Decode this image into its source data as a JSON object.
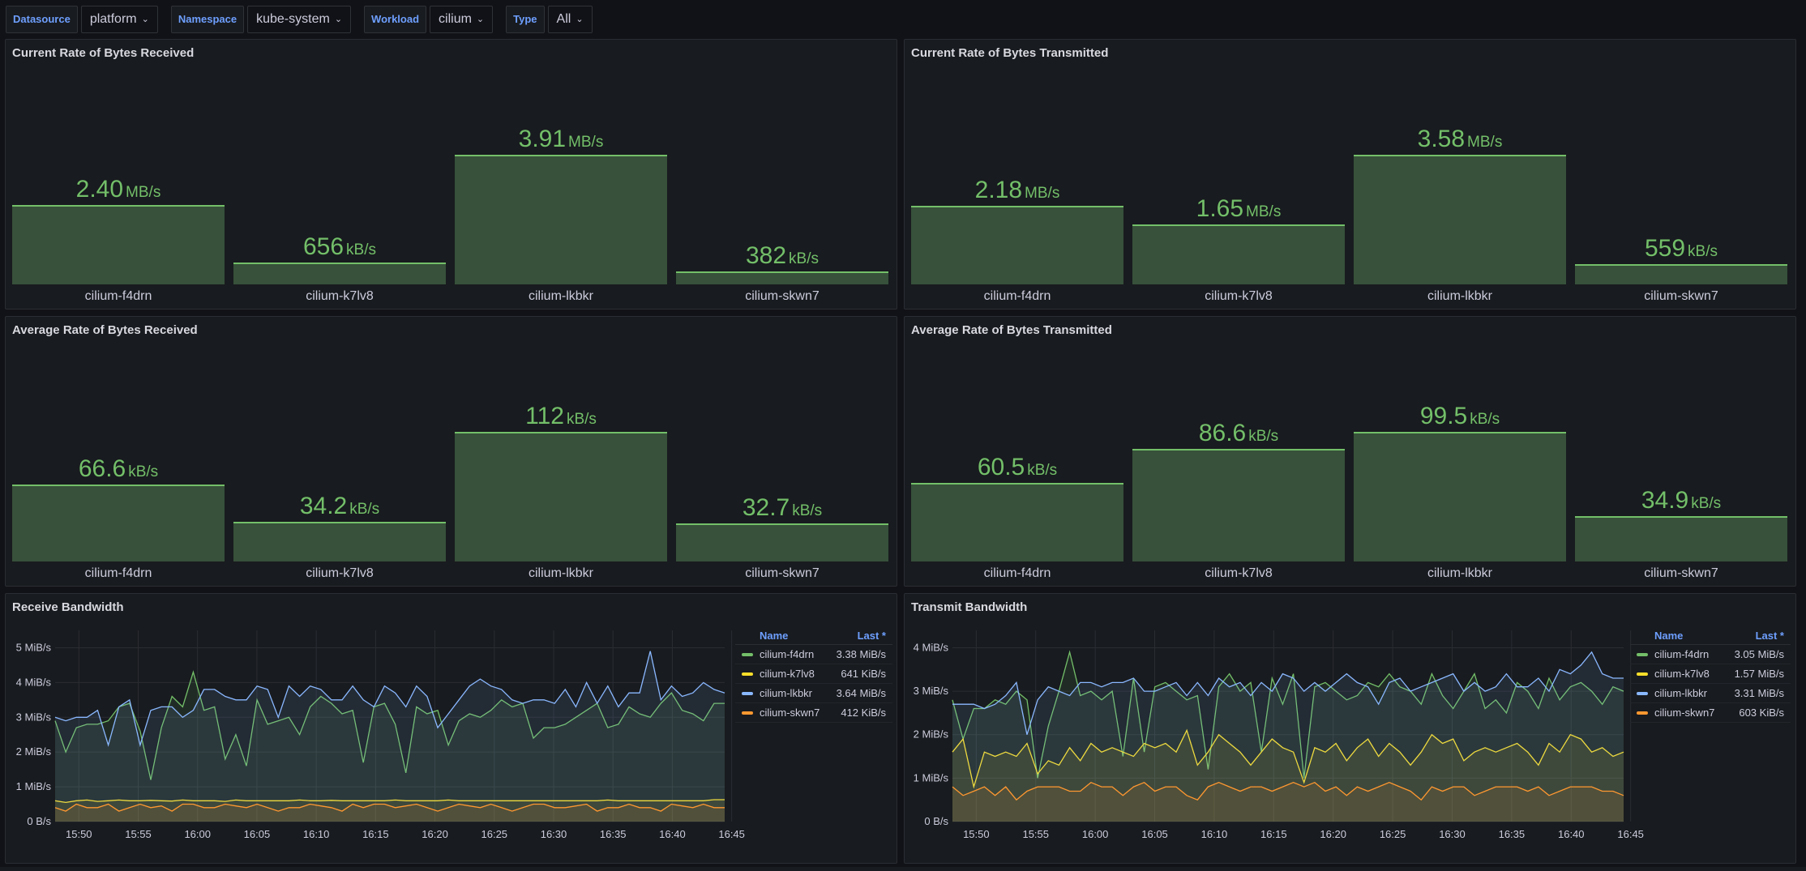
{
  "variables": [
    {
      "label": "Datasource",
      "value": "platform"
    },
    {
      "label": "Namespace",
      "value": "kube-system"
    },
    {
      "label": "Workload",
      "value": "cilium"
    },
    {
      "label": "Type",
      "value": "All"
    }
  ],
  "bar_panels": [
    {
      "title": "Current Rate of Bytes Received",
      "bars": [
        {
          "name": "cilium-f4drn",
          "value": 2.4,
          "num": "2.40",
          "unit": "MB/s"
        },
        {
          "name": "cilium-k7lv8",
          "value": 0.656,
          "num": "656",
          "unit": "kB/s"
        },
        {
          "name": "cilium-lkbkr",
          "value": 3.91,
          "num": "3.91",
          "unit": "MB/s"
        },
        {
          "name": "cilium-skwn7",
          "value": 0.382,
          "num": "382",
          "unit": "kB/s"
        }
      ],
      "max": 3.91
    },
    {
      "title": "Current Rate of Bytes Transmitted",
      "bars": [
        {
          "name": "cilium-f4drn",
          "value": 2.18,
          "num": "2.18",
          "unit": "MB/s"
        },
        {
          "name": "cilium-k7lv8",
          "value": 1.65,
          "num": "1.65",
          "unit": "MB/s"
        },
        {
          "name": "cilium-lkbkr",
          "value": 3.58,
          "num": "3.58",
          "unit": "MB/s"
        },
        {
          "name": "cilium-skwn7",
          "value": 0.559,
          "num": "559",
          "unit": "kB/s"
        }
      ],
      "max": 3.58
    },
    {
      "title": "Average Rate of Bytes Received",
      "bars": [
        {
          "name": "cilium-f4drn",
          "value": 66.6,
          "num": "66.6",
          "unit": "kB/s"
        },
        {
          "name": "cilium-k7lv8",
          "value": 34.2,
          "num": "34.2",
          "unit": "kB/s"
        },
        {
          "name": "cilium-lkbkr",
          "value": 112,
          "num": "112",
          "unit": "kB/s"
        },
        {
          "name": "cilium-skwn7",
          "value": 32.7,
          "num": "32.7",
          "unit": "kB/s"
        }
      ],
      "max": 112
    },
    {
      "title": "Average Rate of Bytes Transmitted",
      "bars": [
        {
          "name": "cilium-f4drn",
          "value": 60.5,
          "num": "60.5",
          "unit": "kB/s"
        },
        {
          "name": "cilium-k7lv8",
          "value": 86.6,
          "num": "86.6",
          "unit": "kB/s"
        },
        {
          "name": "cilium-lkbkr",
          "value": 99.5,
          "num": "99.5",
          "unit": "kB/s"
        },
        {
          "name": "cilium-skwn7",
          "value": 34.9,
          "num": "34.9",
          "unit": "kB/s"
        }
      ],
      "max": 99.5
    }
  ],
  "chart_data": [
    {
      "type": "area",
      "title": "Receive Bandwidth",
      "x_ticks": [
        "15:50",
        "15:55",
        "16:00",
        "16:05",
        "16:10",
        "16:15",
        "16:20",
        "16:25",
        "16:30",
        "16:35",
        "16:40",
        "16:45"
      ],
      "y_ticks": [
        "0 B/s",
        "1 MiB/s",
        "2 MiB/s",
        "3 MiB/s",
        "4 MiB/s",
        "5 MiB/s"
      ],
      "ylim": [
        0,
        5.5
      ],
      "legend_header": {
        "name": "Name",
        "last": "Last *"
      },
      "series": [
        {
          "name": "cilium-f4drn",
          "color": "#73bf69",
          "last": "3.38 MiB/s",
          "values": [
            2.9,
            2.0,
            2.7,
            2.8,
            2.8,
            2.9,
            3.3,
            3.4,
            2.6,
            1.2,
            2.7,
            3.6,
            3.3,
            4.3,
            3.2,
            3.3,
            1.8,
            2.5,
            1.6,
            3.5,
            2.8,
            2.9,
            3.0,
            2.5,
            3.3,
            3.6,
            3.4,
            3.1,
            3.2,
            1.7,
            3.3,
            3.4,
            2.8,
            1.4,
            3.3,
            3.1,
            3.2,
            2.2,
            2.9,
            3.1,
            3.0,
            3.2,
            3.5,
            3.3,
            3.4,
            2.4,
            2.7,
            2.7,
            2.8,
            3.0,
            3.2,
            3.4,
            2.7,
            2.8,
            3.3,
            3.1,
            3.0,
            3.4,
            3.7,
            3.2,
            3.1,
            2.9,
            3.4,
            3.4
          ]
        },
        {
          "name": "cilium-k7lv8",
          "color": "#fade2a",
          "last": "641 KiB/s",
          "values": [
            0.6,
            0.55,
            0.6,
            0.62,
            0.58,
            0.6,
            0.62,
            0.6,
            0.6,
            0.61,
            0.6,
            0.59,
            0.62,
            0.6,
            0.6,
            0.6,
            0.58,
            0.62,
            0.6,
            0.6,
            0.6,
            0.6,
            0.6,
            0.62,
            0.6,
            0.6,
            0.61,
            0.6,
            0.6,
            0.6,
            0.6,
            0.6,
            0.62,
            0.6,
            0.6,
            0.6,
            0.6,
            0.62,
            0.6,
            0.6,
            0.6,
            0.6,
            0.6,
            0.6,
            0.6,
            0.6,
            0.6,
            0.6,
            0.6,
            0.6,
            0.6,
            0.6,
            0.62,
            0.6,
            0.6,
            0.6,
            0.6,
            0.6,
            0.6,
            0.6,
            0.6,
            0.6,
            0.63,
            0.63
          ]
        },
        {
          "name": "cilium-lkbkr",
          "color": "#8ab8ff",
          "last": "3.64 MiB/s",
          "values": [
            3.0,
            2.9,
            3.0,
            3.0,
            3.2,
            2.2,
            3.3,
            3.5,
            2.2,
            3.2,
            3.3,
            3.3,
            3.0,
            3.2,
            3.8,
            3.8,
            3.6,
            3.5,
            3.5,
            3.9,
            3.8,
            3.0,
            3.9,
            3.6,
            3.9,
            3.8,
            3.5,
            3.5,
            3.9,
            3.5,
            3.3,
            3.9,
            3.7,
            3.3,
            3.9,
            3.6,
            2.7,
            3.1,
            3.5,
            3.9,
            4.1,
            3.9,
            3.8,
            3.5,
            3.4,
            3.5,
            3.5,
            3.4,
            3.8,
            3.3,
            4.0,
            3.4,
            3.9,
            3.3,
            3.7,
            3.7,
            4.9,
            3.5,
            3.9,
            3.6,
            3.7,
            4.0,
            3.8,
            3.7
          ]
        },
        {
          "name": "cilium-skwn7",
          "color": "#ff9830",
          "last": "412 KiB/s",
          "values": [
            0.4,
            0.3,
            0.5,
            0.4,
            0.4,
            0.5,
            0.3,
            0.4,
            0.5,
            0.4,
            0.45,
            0.3,
            0.5,
            0.5,
            0.4,
            0.4,
            0.5,
            0.45,
            0.4,
            0.5,
            0.4,
            0.3,
            0.4,
            0.4,
            0.5,
            0.45,
            0.4,
            0.3,
            0.5,
            0.4,
            0.5,
            0.5,
            0.4,
            0.45,
            0.5,
            0.4,
            0.3,
            0.4,
            0.5,
            0.45,
            0.4,
            0.5,
            0.4,
            0.3,
            0.4,
            0.5,
            0.5,
            0.4,
            0.4,
            0.45,
            0.5,
            0.3,
            0.4,
            0.4,
            0.5,
            0.4,
            0.4,
            0.3,
            0.5,
            0.45,
            0.4,
            0.5,
            0.4,
            0.4
          ]
        }
      ]
    },
    {
      "type": "area",
      "title": "Transmit Bandwidth",
      "x_ticks": [
        "15:50",
        "15:55",
        "16:00",
        "16:05",
        "16:10",
        "16:15",
        "16:20",
        "16:25",
        "16:30",
        "16:35",
        "16:40",
        "16:45"
      ],
      "y_ticks": [
        "0 B/s",
        "1 MiB/s",
        "2 MiB/s",
        "3 MiB/s",
        "4 MiB/s"
      ],
      "ylim": [
        0,
        4.4
      ],
      "legend_header": {
        "name": "Name",
        "last": "Last *"
      },
      "series": [
        {
          "name": "cilium-f4drn",
          "color": "#73bf69",
          "last": "3.05 MiB/s",
          "values": [
            2.8,
            1.9,
            2.6,
            2.6,
            2.8,
            2.7,
            3.0,
            2.8,
            1.0,
            2.2,
            3.0,
            3.9,
            2.9,
            3.0,
            2.8,
            3.0,
            1.5,
            3.3,
            1.6,
            3.1,
            3.2,
            3.0,
            2.8,
            2.9,
            1.2,
            3.1,
            3.4,
            3.0,
            3.2,
            1.6,
            3.3,
            2.7,
            3.4,
            1.0,
            3.1,
            3.2,
            3.0,
            2.8,
            2.9,
            3.2,
            3.1,
            3.4,
            3.1,
            3.0,
            2.7,
            3.4,
            2.9,
            2.6,
            3.0,
            3.4,
            2.6,
            2.8,
            2.5,
            3.2,
            3.0,
            2.6,
            3.3,
            2.8,
            3.1,
            3.2,
            3.0,
            2.7,
            3.1,
            3.0
          ]
        },
        {
          "name": "cilium-k7lv8",
          "color": "#fade2a",
          "last": "1.57 MiB/s",
          "values": [
            1.6,
            1.9,
            0.8,
            1.6,
            1.5,
            1.6,
            1.5,
            1.8,
            1.1,
            1.4,
            1.3,
            1.7,
            1.4,
            1.8,
            1.6,
            1.7,
            1.6,
            1.5,
            1.8,
            1.7,
            1.8,
            1.6,
            2.1,
            1.3,
            1.6,
            2.0,
            1.8,
            1.6,
            1.3,
            1.6,
            1.9,
            1.7,
            1.6,
            0.9,
            1.7,
            1.6,
            1.8,
            1.4,
            1.7,
            1.9,
            1.5,
            1.8,
            1.6,
            1.3,
            1.6,
            2.0,
            1.8,
            1.9,
            1.4,
            1.6,
            1.7,
            1.6,
            1.7,
            1.8,
            1.6,
            1.3,
            1.8,
            1.6,
            2.0,
            1.9,
            1.6,
            1.7,
            1.5,
            1.6
          ]
        },
        {
          "name": "cilium-lkbkr",
          "color": "#8ab8ff",
          "last": "3.31 MiB/s",
          "values": [
            2.7,
            2.7,
            2.7,
            2.6,
            2.7,
            2.9,
            3.2,
            2.0,
            2.8,
            3.1,
            3.0,
            2.9,
            3.2,
            3.2,
            3.1,
            3.2,
            3.2,
            3.3,
            3.0,
            3.0,
            3.1,
            3.2,
            2.9,
            3.2,
            2.9,
            3.3,
            3.1,
            3.2,
            2.9,
            3.2,
            3.0,
            3.4,
            3.3,
            3.0,
            3.2,
            3.0,
            3.2,
            3.4,
            3.2,
            3.1,
            2.7,
            3.2,
            3.3,
            3.0,
            3.1,
            3.2,
            3.3,
            3.4,
            3.0,
            3.2,
            3.0,
            3.1,
            3.4,
            3.1,
            3.1,
            3.3,
            3.0,
            3.5,
            3.4,
            3.6,
            3.9,
            3.4,
            3.3,
            3.3
          ]
        },
        {
          "name": "cilium-skwn7",
          "color": "#ff9830",
          "last": "603 KiB/s",
          "values": [
            0.8,
            0.6,
            0.7,
            0.8,
            0.6,
            0.8,
            0.5,
            0.7,
            0.8,
            0.8,
            0.8,
            0.7,
            0.7,
            0.9,
            0.8,
            0.8,
            0.6,
            0.8,
            0.9,
            0.7,
            0.8,
            0.8,
            0.6,
            0.5,
            0.8,
            0.9,
            0.8,
            0.7,
            0.8,
            0.8,
            0.7,
            0.8,
            0.9,
            0.8,
            0.9,
            0.7,
            0.8,
            0.6,
            0.8,
            0.7,
            0.8,
            0.9,
            0.8,
            0.7,
            0.5,
            0.8,
            0.7,
            0.8,
            0.8,
            0.6,
            0.7,
            0.8,
            0.8,
            0.8,
            0.7,
            0.8,
            0.6,
            0.7,
            0.8,
            0.8,
            0.8,
            0.7,
            0.7,
            0.6
          ]
        }
      ]
    }
  ]
}
